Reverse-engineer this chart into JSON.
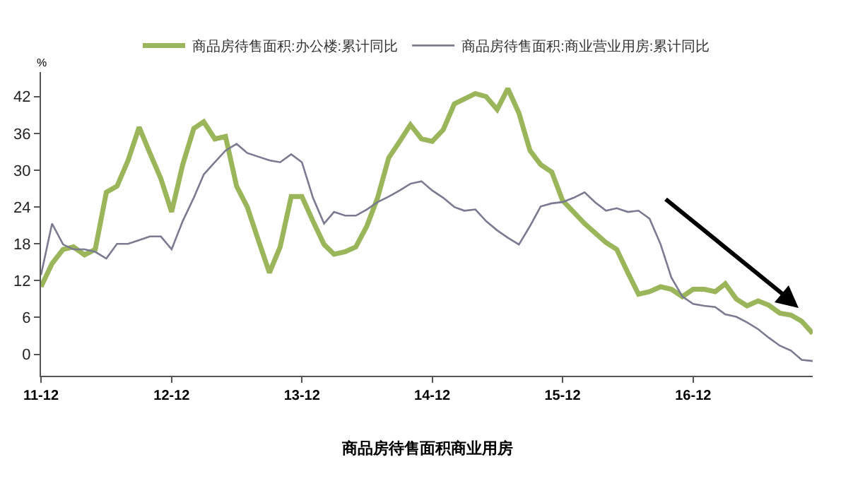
{
  "chart_data": {
    "type": "line",
    "x": [
      "2011-12",
      "2012-01",
      "2012-02",
      "2012-03",
      "2012-04",
      "2012-05",
      "2012-06",
      "2012-07",
      "2012-08",
      "2012-09",
      "2012-10",
      "2012-11",
      "2012-12",
      "2013-01",
      "2013-02",
      "2013-03",
      "2013-04",
      "2013-05",
      "2013-06",
      "2013-07",
      "2013-08",
      "2013-09",
      "2013-10",
      "2013-11",
      "2013-12",
      "2014-01",
      "2014-02",
      "2014-03",
      "2014-04",
      "2014-05",
      "2014-06",
      "2014-07",
      "2014-08",
      "2014-09",
      "2014-10",
      "2014-11",
      "2014-12",
      "2015-01",
      "2015-02",
      "2015-03",
      "2015-04",
      "2015-05",
      "2015-06",
      "2015-07",
      "2015-08",
      "2015-09",
      "2015-10",
      "2015-11",
      "2015-12",
      "2016-01",
      "2016-02",
      "2016-03",
      "2016-04",
      "2016-05",
      "2016-06",
      "2016-07",
      "2016-08",
      "2016-09",
      "2016-10",
      "2016-11",
      "2016-12",
      "2017-01",
      "2017-02",
      "2017-03",
      "2017-04",
      "2017-05",
      "2017-06",
      "2017-07",
      "2017-08",
      "2017-09",
      "2017-10",
      "2017-11"
    ],
    "series": [
      {
        "name": "商品房待售面积:办公楼:累计同比",
        "color": "#9ab55a",
        "values": [
          11.0,
          14.8,
          17.1,
          17.5,
          16.2,
          17.1,
          26.4,
          27.4,
          31.6,
          37.0,
          32.8,
          28.6,
          23.2,
          30.9,
          36.8,
          37.9,
          35.1,
          35.5,
          27.4,
          24.0,
          18.6,
          13.3,
          17.5,
          25.7,
          25.7,
          21.7,
          17.9,
          16.3,
          16.7,
          17.5,
          20.9,
          25.5,
          32.0,
          34.7,
          37.4,
          35.1,
          34.7,
          36.6,
          40.8,
          41.6,
          42.5,
          42.0,
          39.9,
          43.3,
          39.3,
          33.2,
          30.9,
          29.7,
          25.1,
          23.2,
          21.3,
          19.8,
          18.2,
          17.1,
          13.3,
          9.8,
          10.2,
          11.0,
          10.6,
          9.4,
          10.6,
          10.6,
          10.2,
          11.5,
          9.0,
          7.9,
          8.7,
          8.0,
          6.7,
          6.4,
          5.4,
          3.4
        ]
      },
      {
        "name": "商品房待售面积:商业营业用房:累计同比",
        "color": "#7a7a90",
        "values": [
          12.9,
          21.3,
          17.9,
          17.1,
          17.1,
          16.7,
          15.6,
          18.0,
          18.0,
          18.6,
          19.2,
          19.2,
          17.1,
          21.7,
          25.5,
          29.3,
          31.3,
          33.2,
          34.3,
          32.8,
          32.2,
          31.6,
          31.3,
          32.6,
          31.3,
          25.5,
          21.3,
          23.2,
          22.6,
          22.6,
          23.6,
          24.8,
          25.7,
          26.7,
          27.8,
          28.2,
          26.7,
          25.5,
          24.0,
          23.4,
          23.6,
          21.7,
          20.2,
          19.0,
          17.9,
          20.9,
          24.1,
          24.6,
          24.8,
          25.5,
          26.4,
          24.8,
          23.4,
          23.8,
          23.2,
          23.4,
          22.1,
          17.9,
          12.5,
          9.4,
          8.2,
          7.9,
          7.7,
          6.5,
          6.1,
          5.2,
          4.1,
          2.7,
          1.4,
          0.6,
          -0.9,
          -1.1
        ]
      }
    ],
    "xlim": [
      "2011-12",
      "2017-11"
    ],
    "xticks": [
      {
        "value": "2011-12",
        "label": "11-12"
      },
      {
        "value": "2012-12",
        "label": "12-12"
      },
      {
        "value": "2013-12",
        "label": "13-12"
      },
      {
        "value": "2014-12",
        "label": "14-12"
      },
      {
        "value": "2015-12",
        "label": "15-12"
      },
      {
        "value": "2016-12",
        "label": "16-12"
      }
    ],
    "ylim": [
      -3.5,
      46
    ],
    "yticks": [
      0,
      6,
      12,
      18,
      24,
      30,
      36,
      42
    ],
    "ylabel": "%",
    "grid": false,
    "legend": "top",
    "annotations": [
      "商品房待售面积商业用房"
    ]
  }
}
